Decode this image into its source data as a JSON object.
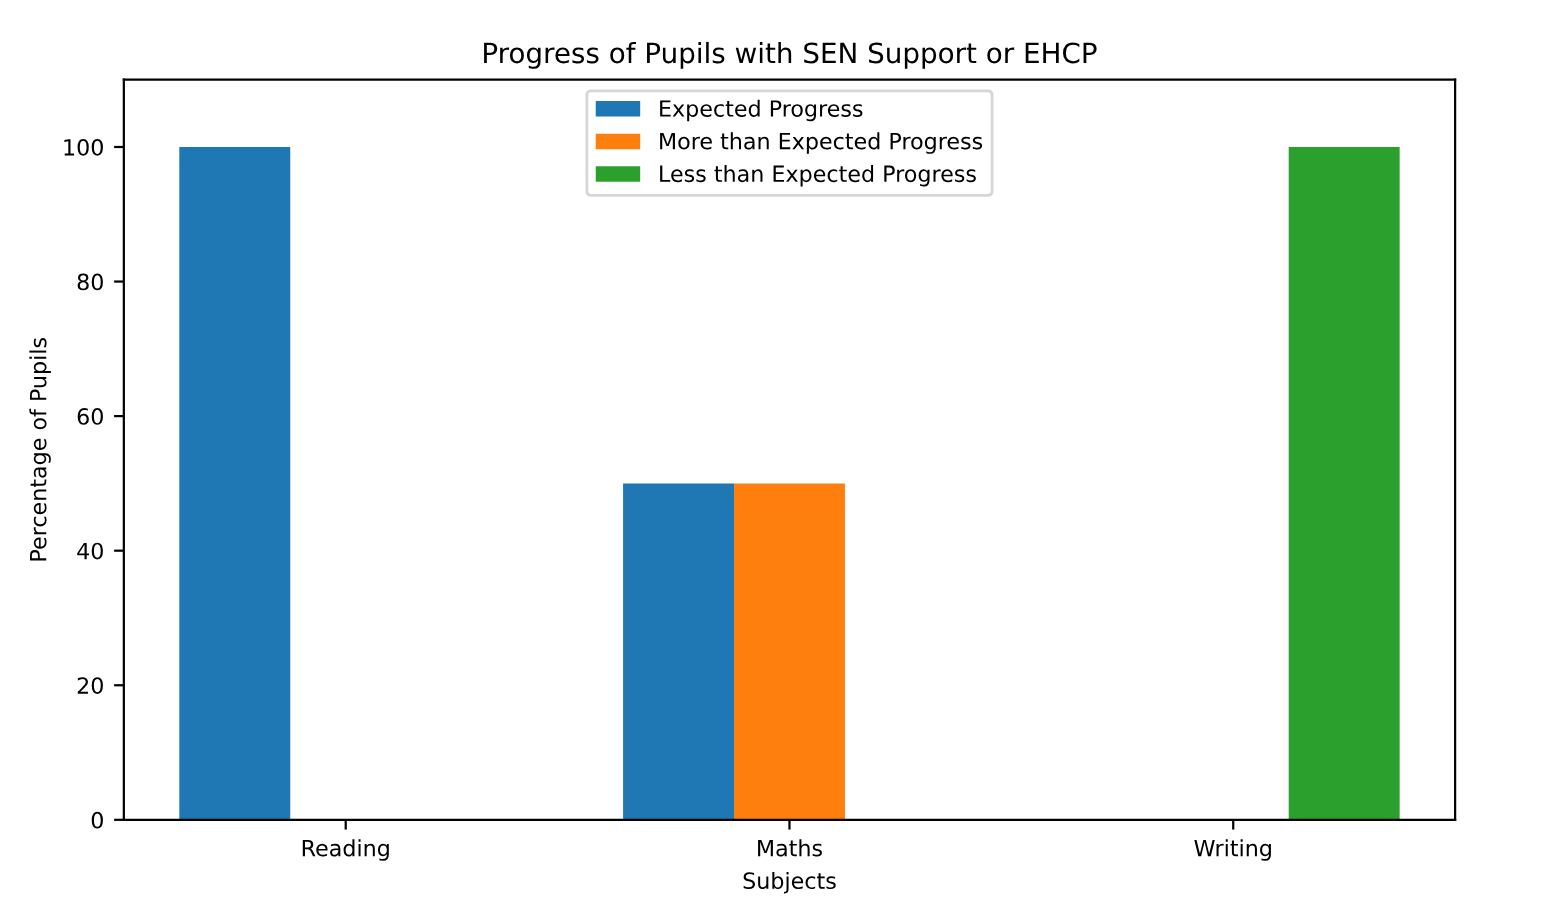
{
  "chart_data": {
    "type": "bar",
    "title": "Progress of Pupils with SEN Support or EHCP",
    "xlabel": "Subjects",
    "ylabel": "Percentage of Pupils",
    "categories": [
      "Reading",
      "Maths",
      "Writing"
    ],
    "series": [
      {
        "name": "Expected Progress",
        "color": "#1f77b4",
        "values": [
          100,
          50,
          0
        ]
      },
      {
        "name": "More than Expected Progress",
        "color": "#ff7f0e",
        "values": [
          0,
          50,
          0
        ]
      },
      {
        "name": "Less than Expected Progress",
        "color": "#2ca02c",
        "values": [
          0,
          0,
          100
        ]
      }
    ],
    "ylim": [
      0,
      110
    ],
    "yticks": [
      0,
      20,
      40,
      60,
      80,
      100
    ],
    "grid": false,
    "legend": "top"
  }
}
